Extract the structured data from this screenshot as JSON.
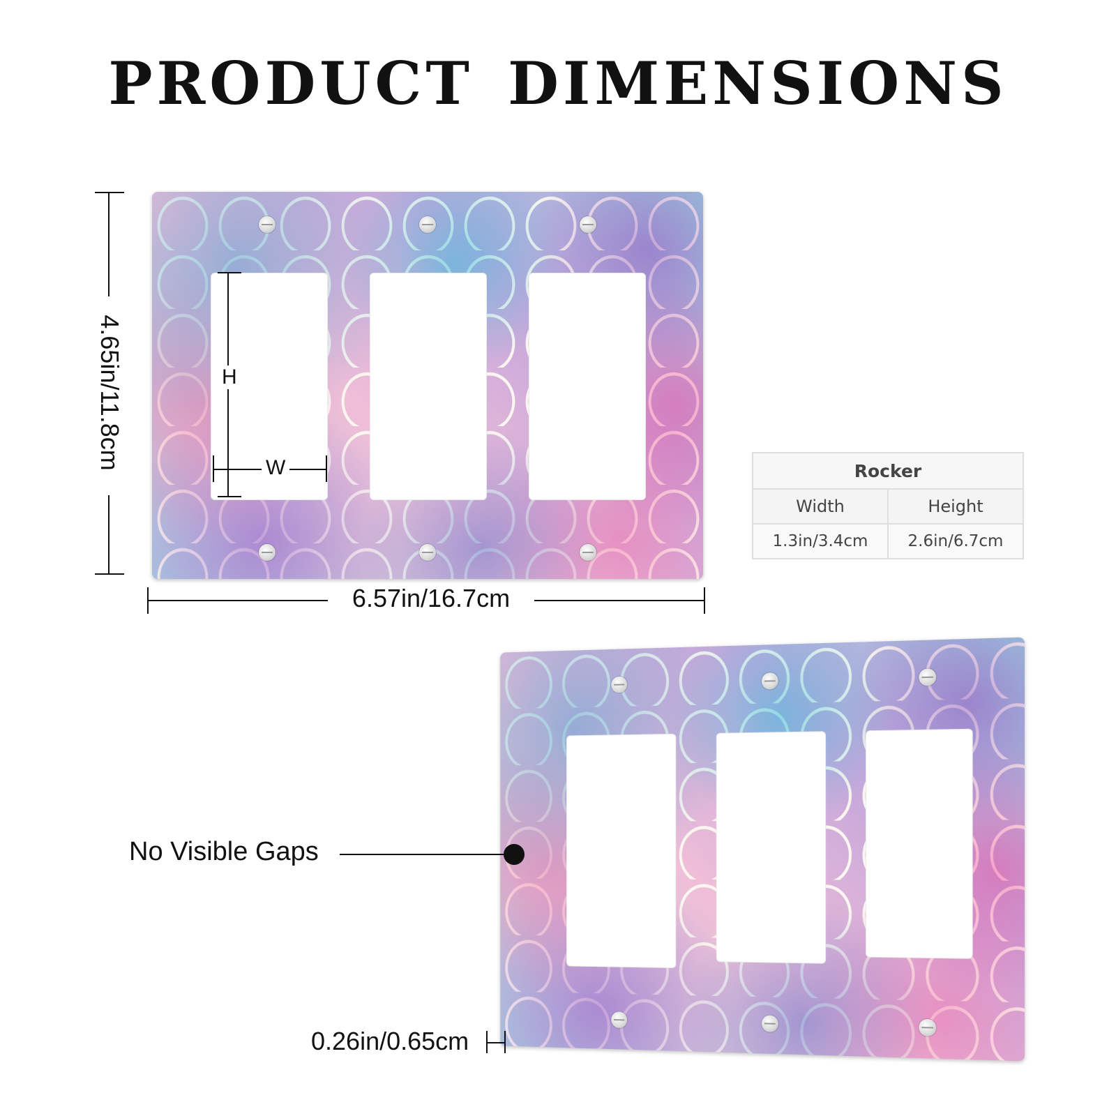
{
  "title": "PRODUCT DIMENSIONS",
  "dimensions": {
    "height": "4.65in/11.8cm",
    "width": "6.57in/16.7cm",
    "thickness": "0.26in/0.65cm",
    "hole_height_label": "H",
    "hole_width_label": "W"
  },
  "spec_table": {
    "header": "Rocker",
    "columns": [
      "Width",
      "Height"
    ],
    "values": [
      "1.3in/3.4cm",
      "2.6in/6.7cm"
    ]
  },
  "callout": "No Visible Gaps"
}
